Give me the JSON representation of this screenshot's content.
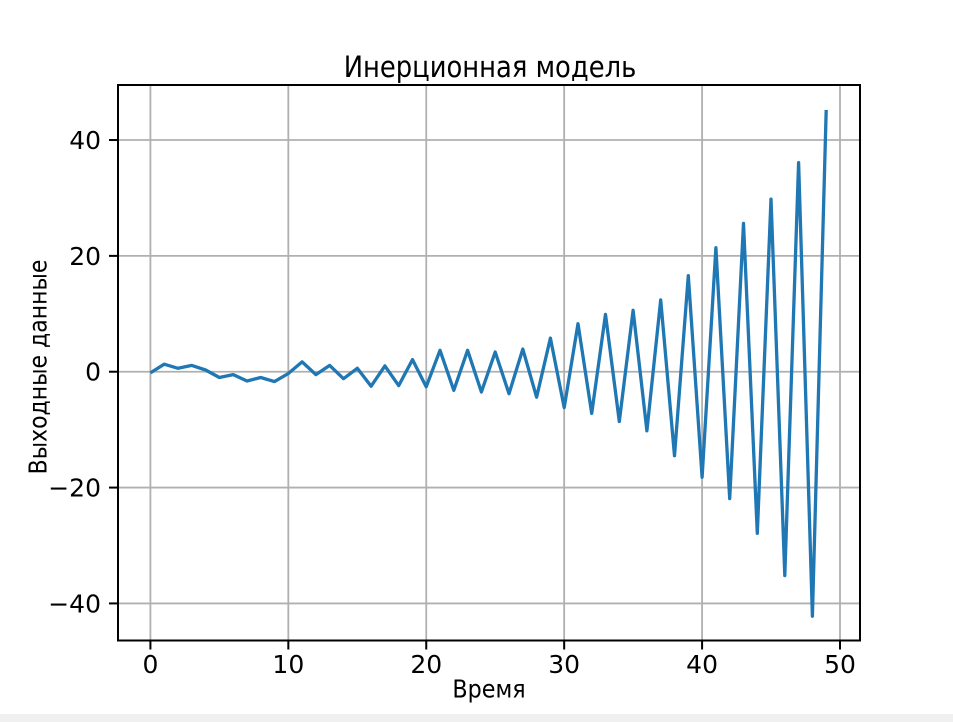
{
  "figure": {
    "background": "#ffffff",
    "bottom_strip_color": "#f0f0f0"
  },
  "chart_data": {
    "type": "line",
    "title": "Инерционная модель",
    "xlabel": "Время",
    "ylabel": "Выходные данные",
    "x": [
      0,
      1,
      2,
      3,
      4,
      5,
      6,
      7,
      8,
      9,
      10,
      11,
      12,
      13,
      14,
      15,
      16,
      17,
      18,
      19,
      20,
      21,
      22,
      23,
      24,
      25,
      26,
      27,
      28,
      29,
      30,
      31,
      32,
      33,
      34,
      35,
      36,
      37,
      38,
      39,
      40,
      41,
      42,
      43,
      44,
      45,
      46,
      47,
      48,
      49
    ],
    "values": [
      -0.2,
      1.3,
      0.6,
      1.1,
      0.3,
      -1.0,
      -0.5,
      -1.6,
      -1.0,
      -1.7,
      -0.3,
      1.7,
      -0.5,
      1.1,
      -1.2,
      0.6,
      -2.5,
      1.0,
      -2.4,
      2.1,
      -2.6,
      3.7,
      -3.2,
      3.7,
      -3.5,
      3.4,
      -3.8,
      3.9,
      -4.4,
      5.8,
      -6.2,
      8.3,
      -7.2,
      9.9,
      -8.6,
      10.6,
      -10.2,
      12.4,
      -14.5,
      16.6,
      -18.2,
      21.4,
      -21.9,
      25.6,
      -27.9,
      29.8,
      -35.2,
      36.1,
      -42.2,
      45.2
    ],
    "series_color": "#1f77b4",
    "line_width": 3.3,
    "grid": true,
    "grid_color": "#b0b0b0",
    "frame_color": "#000000",
    "text_color": "#000000",
    "xlim": [
      -2.35,
      51.45
    ],
    "ylim": [
      -46.4,
      49.5
    ],
    "xticks": [
      0,
      10,
      20,
      30,
      40,
      50
    ],
    "xtick_labels": [
      "0",
      "10",
      "20",
      "30",
      "40",
      "50"
    ],
    "yticks": [
      -40,
      -20,
      0,
      20,
      40
    ],
    "ytick_labels": [
      "−40",
      "−20",
      "0",
      "20",
      "40"
    ]
  }
}
